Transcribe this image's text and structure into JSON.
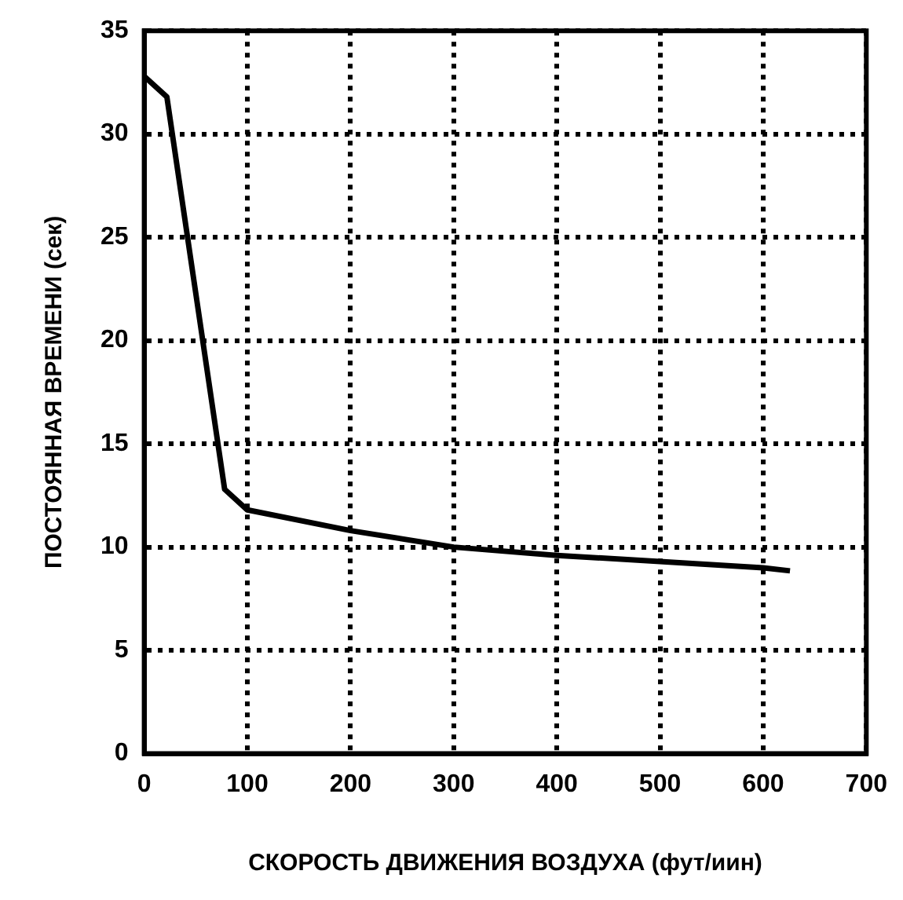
{
  "chart_data": {
    "type": "line",
    "xlabel": "СКОРОСТЬ ДВИЖЕНИЯ ВОЗДУХА (фут/иин)",
    "ylabel": "ПОСТОЯННАЯ ВРЕМЕНИ (сек)",
    "x": [
      0,
      22,
      78,
      100,
      200,
      300,
      400,
      500,
      600,
      626
    ],
    "series": [
      {
        "color": "#000000",
        "values": [
          32.8,
          31.8,
          12.8,
          11.8,
          10.8,
          10.0,
          9.6,
          9.3,
          9.0,
          8.85
        ]
      }
    ],
    "xlim": [
      0,
      700
    ],
    "xticks": [
      0,
      100,
      200,
      300,
      400,
      500,
      600,
      700
    ],
    "ylim": [
      0,
      35
    ],
    "yticks": [
      0,
      5,
      10,
      15,
      20,
      25,
      30,
      35
    ],
    "grid": true,
    "legend": false,
    "marker": "none",
    "line_style": "solid"
  }
}
